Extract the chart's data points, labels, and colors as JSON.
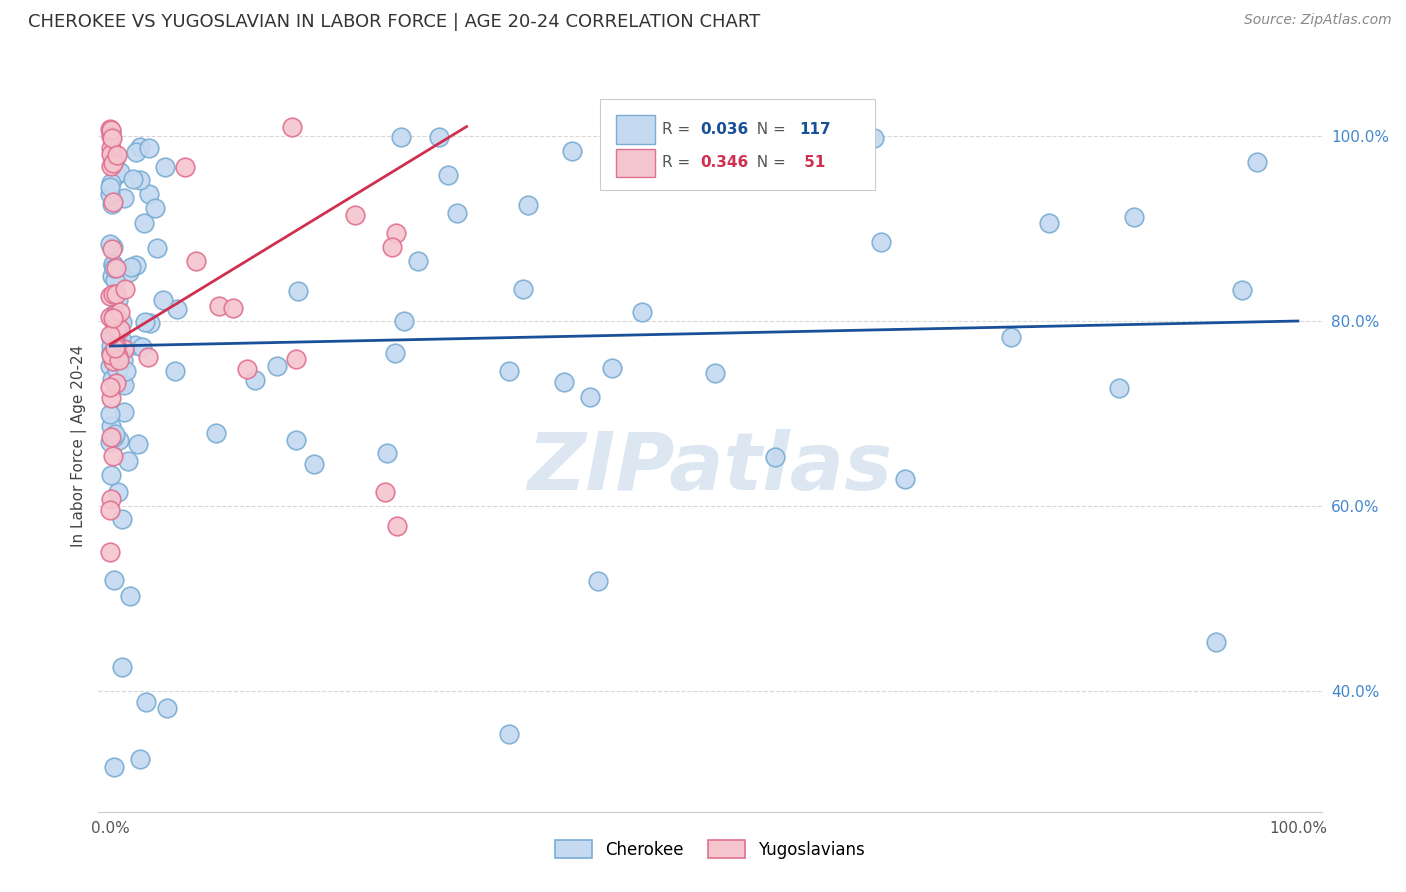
{
  "title": "CHEROKEE VS YUGOSLAVIAN IN LABOR FORCE | AGE 20-24 CORRELATION CHART",
  "source": "Source: ZipAtlas.com",
  "ylabel": "In Labor Force | Age 20-24",
  "legend_cherokee": "Cherokee",
  "legend_yugoslavians": "Yugoslavians",
  "R_cherokee": "0.036",
  "N_cherokee": "117",
  "R_yugoslavian": "0.346",
  "N_yugoslavian": "51",
  "watermark": "ZIPatlas",
  "cherokee_color": "#c5d9f0",
  "cherokee_edge": "#7aadd4",
  "yugoslav_color": "#f5c5ce",
  "yugoslav_edge": "#e07090",
  "trend_cherokee_color": "#1a5099",
  "trend_yugoslav_color": "#d03050",
  "ytick_color": "#4488cc",
  "grid_color": "#d8d8d8",
  "title_color": "#333333",
  "source_color": "#888888",
  "watermark_color": "#c0d4e8"
}
